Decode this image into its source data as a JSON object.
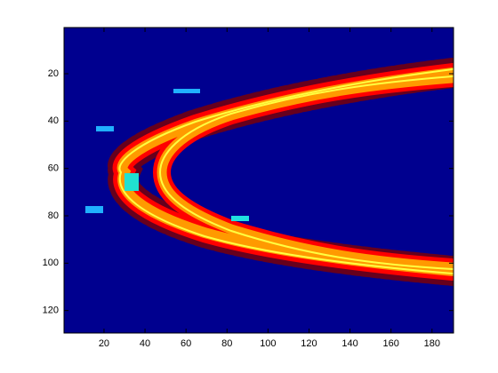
{
  "chart_data": {
    "type": "image",
    "background": "#00008f",
    "xlim": [
      0.5,
      190.5
    ],
    "ylim": [
      0.5,
      129.5
    ],
    "y_reversed": true,
    "xticks": [
      20,
      40,
      60,
      80,
      100,
      120,
      140,
      160,
      180
    ],
    "yticks": [
      20,
      40,
      60,
      80,
      100,
      120
    ]
  }
}
